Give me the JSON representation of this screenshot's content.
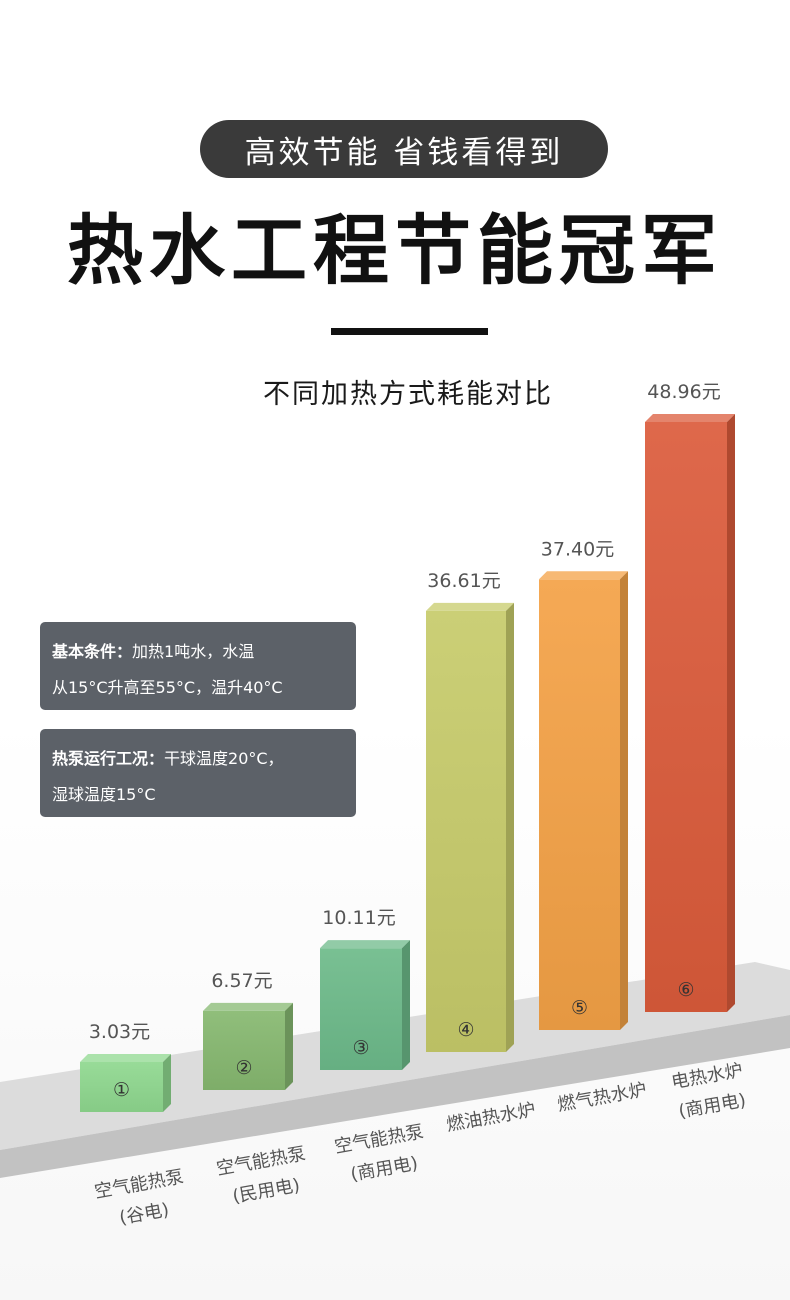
{
  "banner": {
    "tagline": "高效节能 省钱看得到",
    "headline": "热水工程节能冠军"
  },
  "info_boxes": [
    {
      "label": "基本条件：",
      "line1": "加热1吨水，水温",
      "line2": "从15°C升高至55°C，温升40°C"
    },
    {
      "label": "热泵运行工况：",
      "line1": "干球温度20°C，",
      "line2": "湿球温度15°C"
    }
  ],
  "chart_data": {
    "type": "bar",
    "title": "不同加热方式耗能对比",
    "categories": [
      {
        "name": "空气能热泵",
        "sub": "(谷电)",
        "marker": "①"
      },
      {
        "name": "空气能热泵",
        "sub": "(民用电)",
        "marker": "②"
      },
      {
        "name": "空气能热泵",
        "sub": "(商用电)",
        "marker": "③"
      },
      {
        "name": "燃油热水炉",
        "sub": "",
        "marker": "④"
      },
      {
        "name": "燃气热水炉",
        "sub": "",
        "marker": "⑤"
      },
      {
        "name": "电热水炉",
        "sub": "(商用电)",
        "marker": "⑥"
      }
    ],
    "values": [
      3.03,
      6.57,
      10.11,
      36.61,
      37.4,
      48.96
    ],
    "value_labels": [
      "3.03元",
      "6.57元",
      "10.11元",
      "36.61元",
      "37.40元",
      "48.96元"
    ],
    "unit": "元",
    "colors": [
      "#8fd88f",
      "#86b870",
      "#6dba8a",
      "#c7cb6a",
      "#f4a246",
      "#db5b3b"
    ],
    "platform_color": "#dcdcdc"
  }
}
